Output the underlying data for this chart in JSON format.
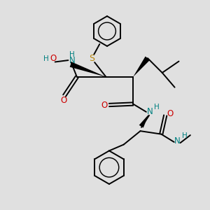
{
  "bg_color": "#e0e0e0",
  "bond_color": "#000000",
  "bond_width": 1.4,
  "S_color": "#b8860b",
  "N_color": "#008080",
  "O_color": "#cc0000",
  "fig_width": 3.0,
  "fig_height": 3.0,
  "dpi": 100,
  "xlim": [
    0,
    10
  ],
  "ylim": [
    0,
    10
  ]
}
